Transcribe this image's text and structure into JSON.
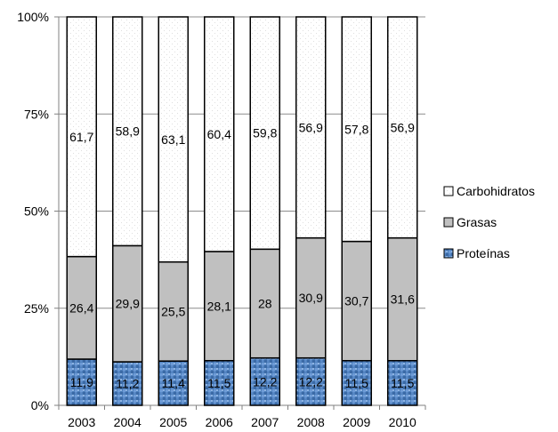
{
  "chart_data": {
    "type": "bar",
    "stacked": true,
    "normalized": true,
    "categories": [
      "2003",
      "2004",
      "2005",
      "2006",
      "2007",
      "2008",
      "2009",
      "2010"
    ],
    "series": [
      {
        "name": "Proteínas",
        "values": [
          11.9,
          11.2,
          11.4,
          11.5,
          12.2,
          12.2,
          11.5,
          11.5
        ],
        "labels": [
          "11,9",
          "11,2",
          "11,4",
          "11,5",
          "12,2",
          "12,2",
          "11,5",
          "11,5"
        ],
        "color": "#4f81bd",
        "pattern": "mosaic"
      },
      {
        "name": "Grasas",
        "values": [
          26.4,
          29.9,
          25.5,
          28.1,
          28.0,
          30.9,
          30.7,
          31.6
        ],
        "labels": [
          "26,4",
          "29,9",
          "25,5",
          "28,1",
          "28",
          "30,9",
          "30,7",
          "31,6"
        ],
        "color": "#c0c0c0",
        "pattern": "solid"
      },
      {
        "name": "Carbohidratos",
        "values": [
          61.7,
          58.9,
          63.1,
          60.4,
          59.8,
          56.9,
          57.8,
          56.9
        ],
        "labels": [
          "61,7",
          "58,9",
          "63,1",
          "60,4",
          "59,8",
          "56,9",
          "57,8",
          "56,9"
        ],
        "color": "#ffffff",
        "pattern": "dotted"
      }
    ],
    "y_ticks": [
      "0%",
      "25%",
      "50%",
      "75%",
      "100%"
    ],
    "ylim": [
      0,
      100
    ],
    "legend_order": [
      "Carbohidratos",
      "Grasas",
      "Proteínas"
    ],
    "legend_position": "right",
    "grid": true,
    "title": "",
    "xlabel": "",
    "ylabel": ""
  }
}
